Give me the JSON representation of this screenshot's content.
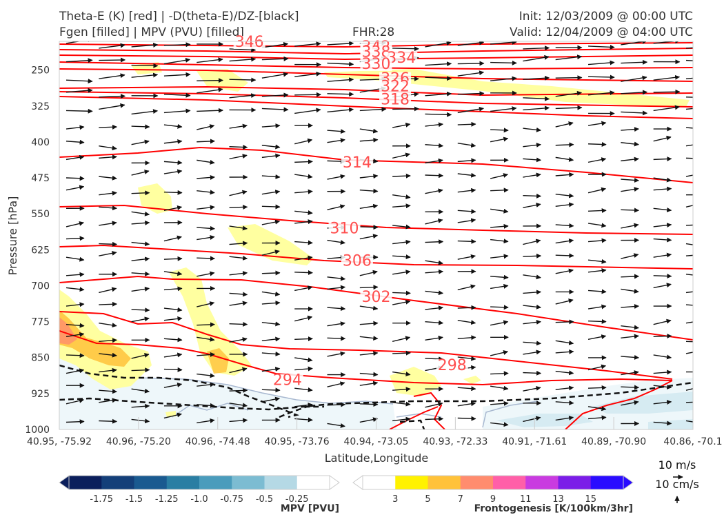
{
  "header": {
    "left_line1": "Theta-E (K) [red] | -D(theta-E)/DZ-[black]",
    "left_line2": "Fgen [filled] | MPV (PVU) [filled]",
    "center": "FHR:28",
    "right_line1": "Init: 12/03/2009 @ 00:00 UTC",
    "right_line2": "Valid: 12/04/2009 @ 04:00 UTC"
  },
  "chart_data": {
    "type": "cross-section",
    "ylabel": "Pressure [hPa]",
    "xlabel": "Latitude,Longitude",
    "y_ticks": [
      "250",
      "325",
      "400",
      "475",
      "550",
      "625",
      "700",
      "775",
      "850",
      "925",
      "1000"
    ],
    "y_tick_values": [
      250,
      325,
      400,
      475,
      550,
      625,
      700,
      775,
      850,
      925,
      1000
    ],
    "ylim": [
      1000,
      190
    ],
    "x_ticks": [
      "40.95, -75.92",
      "40.96, -75.20",
      "40.96, -74.48",
      "40.95, -73.76",
      "40.94, -73.05",
      "40.93, -72.33",
      "40.91, -71.61",
      "40.89, -70.90",
      "40.86, -70.1"
    ],
    "theta_e_contour_labels": [
      {
        "text": "346",
        "x": 0.3,
        "p": 190
      },
      {
        "text": "342",
        "x": 0.5,
        "p": 200
      },
      {
        "text": "338",
        "x": 0.5,
        "p": 211
      },
      {
        "text": "334",
        "x": 0.54,
        "p": 223
      },
      {
        "text": "330",
        "x": 0.5,
        "p": 236
      },
      {
        "text": "326",
        "x": 0.53,
        "p": 266
      },
      {
        "text": "322",
        "x": 0.53,
        "p": 283
      },
      {
        "text": "318",
        "x": 0.53,
        "p": 310
      },
      {
        "text": "314",
        "x": 0.47,
        "p": 442
      },
      {
        "text": "310",
        "x": 0.45,
        "p": 579
      },
      {
        "text": "306",
        "x": 0.47,
        "p": 647
      },
      {
        "text": "302",
        "x": 0.5,
        "p": 722
      },
      {
        "text": "298",
        "x": 0.62,
        "p": 865
      },
      {
        "text": "294",
        "x": 0.36,
        "p": 896
      }
    ],
    "colorbar_mpv": {
      "title": "MPV [PVU]",
      "ticks": [
        "-1.75",
        "-1.5",
        "-1.25",
        "-1.0",
        "-0.75",
        "-0.5",
        "-0.25"
      ],
      "colors": [
        "#0b1f5c",
        "#143f79",
        "#1a5a90",
        "#2a7ea3",
        "#4a9cbc",
        "#7cbcd2",
        "#b5d9e5",
        "#ffffff"
      ]
    },
    "colorbar_fgen": {
      "title": "Frontogenesis [K/100km/3hr]",
      "ticks": [
        "3",
        "5",
        "7",
        "9",
        "11",
        "13",
        "15"
      ],
      "colors": [
        "#ffffff",
        "#fff200",
        "#ffc23a",
        "#ff8c6e",
        "#ff5fa8",
        "#c93be0",
        "#7b1de8",
        "#2a0cff"
      ]
    },
    "quiver_key": {
      "label_top": "10 m/s",
      "label_bottom": "10 cm/s"
    },
    "colors": {
      "theta_e": "#ff0000",
      "label": "#ff4d4d",
      "vectors": "#111111",
      "axis": "#cccccc"
    }
  }
}
